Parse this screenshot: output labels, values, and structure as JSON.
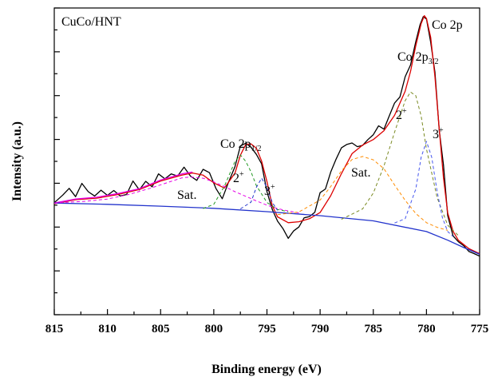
{
  "chart_data": {
    "type": "line",
    "sample_label": "CuCo/HNT",
    "region_label": "Co 2p",
    "xlabel": "Binding energy (eV)",
    "ylabel": "Intensity (a.u.)",
    "x_axis": {
      "range": [
        815,
        775
      ],
      "reversed": true,
      "ticks": [
        815,
        810,
        805,
        800,
        795,
        790,
        785,
        780,
        775
      ]
    },
    "y_axis": {
      "range": [
        0,
        100
      ],
      "tick_labels": "none"
    },
    "grid": false,
    "annotations": {
      "co2p32": {
        "base": "Co 2p",
        "sub": "3/2"
      },
      "co2p12": {
        "base": "Co 2p",
        "sub": "1/2"
      },
      "sat_left": "Sat.",
      "sat_right": "Sat.",
      "ox2_left": {
        "base": "2",
        "sup": "+"
      },
      "ox3_left": {
        "base": "3",
        "sup": "+"
      },
      "ox2_right": {
        "base": "2",
        "sup": "+"
      },
      "ox3_right": {
        "base": "3",
        "sup": "+"
      }
    },
    "series": [
      {
        "style": "raw",
        "color": "#000000",
        "dash": "",
        "x": [
          815,
          814.2,
          813.6,
          813.0,
          812.4,
          811.8,
          811.2,
          810.6,
          810.0,
          809.4,
          808.8,
          808.2,
          807.6,
          807.0,
          806.4,
          805.8,
          805.2,
          804.6,
          804.0,
          803.4,
          802.8,
          802.2,
          801.6,
          801.0,
          800.4,
          799.8,
          799.2,
          798.6,
          798.0,
          797.5,
          797.0,
          796.5,
          796.0,
          795.5,
          795.0,
          794.5,
          794.0,
          793.5,
          793.0,
          792.5,
          792.0,
          791.5,
          791.0,
          790.5,
          790.0,
          789.5,
          789.0,
          788.5,
          788.0,
          787.5,
          787.0,
          786.5,
          786.0,
          785.5,
          785.0,
          784.5,
          784.0,
          783.5,
          783.0,
          782.5,
          782.0,
          781.5,
          781.0,
          780.6,
          780.3,
          780.0,
          779.6,
          779.2,
          778.8,
          778.4,
          778.0,
          777.5,
          777.0,
          776.5,
          776.0,
          775.5,
          775.0
        ],
        "y": [
          36.5,
          39.0,
          41.2,
          38.5,
          42.8,
          40.1,
          38.7,
          40.6,
          38.9,
          40.5,
          38.7,
          39.2,
          43.6,
          40.7,
          43.5,
          41.7,
          45.9,
          44.3,
          45.9,
          45.2,
          48.1,
          45.2,
          43.8,
          47.4,
          46.3,
          41.2,
          37.8,
          43.3,
          48.3,
          55.0,
          55.9,
          54.6,
          52.3,
          49.2,
          40.1,
          34.3,
          30.5,
          28.1,
          24.9,
          27.3,
          28.6,
          31.6,
          32.0,
          33.4,
          39.8,
          41.0,
          46.5,
          50.7,
          54.4,
          55.5,
          56.0,
          54.8,
          55.2,
          57.1,
          58.7,
          61.6,
          60.5,
          64.8,
          69.0,
          71.0,
          77.6,
          81.4,
          89.0,
          94.6,
          97.2,
          96.4,
          88.8,
          79.1,
          60.1,
          48.8,
          32.3,
          25.7,
          23.8,
          22.5,
          20.6,
          19.9,
          19.1
        ]
      },
      {
        "style": "fit",
        "color": "#dd0000",
        "dash": "",
        "x": [
          815,
          813,
          811,
          809,
          807,
          805,
          803,
          802,
          801,
          800,
          799,
          798,
          797.5,
          797,
          796.5,
          796,
          795.5,
          795,
          794.5,
          794,
          793,
          792,
          791,
          790,
          789,
          788,
          787,
          786,
          785,
          784,
          783,
          782,
          781.5,
          781,
          780.5,
          780.2,
          780,
          779.6,
          779.2,
          778.8,
          778.4,
          778,
          777.5,
          777,
          776,
          775
        ],
        "y": [
          36.2,
          37.5,
          38.0,
          39.2,
          40.8,
          43.6,
          45.5,
          46.2,
          45.5,
          43.0,
          41.3,
          46.2,
          52.0,
          55.5,
          55.7,
          54.3,
          50.1,
          43.4,
          35.5,
          31.9,
          30.0,
          30.3,
          31.3,
          33.3,
          38.8,
          46.0,
          52.5,
          55.3,
          57.1,
          60.0,
          65.0,
          72.9,
          79.3,
          87.7,
          94.9,
          97.5,
          96.6,
          90.4,
          77.6,
          60.5,
          44.6,
          33.2,
          27.2,
          24.3,
          21.5,
          19.9
        ]
      },
      {
        "style": "envelope",
        "color": "#e600e6",
        "dash": "",
        "x": [
          815,
          813,
          811,
          809,
          807,
          805,
          803,
          802
        ],
        "y": [
          36.4,
          37.7,
          38.3,
          39.5,
          41.1,
          43.9,
          45.9,
          46.5
        ]
      },
      {
        "style": "background",
        "color": "#2233cc",
        "dash": "",
        "x": [
          815,
          810,
          805,
          800,
          795,
          790,
          785,
          780,
          778,
          776.5,
          775
        ],
        "y": [
          36.4,
          36.0,
          35.4,
          34.7,
          33.6,
          32.3,
          30.6,
          27.1,
          24.3,
          21.9,
          19.7
        ]
      },
      {
        "style": "sat-1/2",
        "color": "#e600e6",
        "dash": "4,3",
        "x": [
          815,
          812,
          810,
          808,
          806,
          804,
          803,
          802.2,
          801,
          800,
          799,
          798,
          797,
          796,
          795,
          794,
          793,
          792
        ],
        "y": [
          36.4,
          37.0,
          37.7,
          39.2,
          41.2,
          43.5,
          44.6,
          44.9,
          44.5,
          43.3,
          41.8,
          40.1,
          38.6,
          37.1,
          35.7,
          34.6,
          33.8,
          33.2
        ]
      },
      {
        "style": "Co2+ 1/2",
        "color": "#229922",
        "dash": "4,3",
        "x": [
          801,
          800,
          799,
          798,
          797.5,
          797,
          796.5,
          796,
          795,
          794,
          793
        ],
        "y": [
          34.6,
          36.0,
          41.9,
          50.0,
          52.1,
          50.0,
          46.6,
          42.1,
          36.6,
          34.3,
          33.6
        ]
      },
      {
        "style": "Co3+ 1/2",
        "color": "#2233cc",
        "dash": "4,3",
        "x": [
          797.5,
          796.5,
          796,
          795.5,
          795,
          794.5,
          794
        ],
        "y": [
          34.5,
          36.7,
          41.5,
          44.5,
          41.5,
          36.6,
          34.0
        ]
      },
      {
        "style": "sat-3/2",
        "color": "#ff8c00",
        "dash": "4,3",
        "x": [
          794,
          792,
          790,
          789,
          788,
          787,
          786,
          785,
          784,
          783,
          782,
          781,
          780,
          779,
          778
        ],
        "y": [
          32.6,
          33.5,
          37.4,
          41.8,
          46.9,
          50.6,
          51.6,
          50.5,
          47.6,
          42.3,
          37.3,
          33.0,
          30.0,
          28.5,
          27.5
        ]
      },
      {
        "style": "Co2+ 3/2",
        "color": "#7a8a22",
        "dash": "4,3",
        "x": [
          788,
          786,
          785,
          784,
          783,
          782,
          781.5,
          781,
          780.5,
          780,
          779,
          778,
          777
        ],
        "y": [
          31.1,
          34.5,
          39.7,
          48.5,
          59.5,
          69.8,
          72.6,
          71.4,
          64.8,
          54.0,
          38.2,
          29.2,
          25.8
        ]
      },
      {
        "style": "Co3+ 3/2",
        "color": "#4455ee",
        "dash": "4,3",
        "x": [
          783,
          782,
          781,
          780.5,
          780,
          779.5,
          779,
          778.5,
          778,
          777.5
        ],
        "y": [
          29.9,
          31.3,
          41.0,
          51.3,
          56.5,
          51.3,
          40.2,
          31.6,
          27.1,
          25.5
        ]
      }
    ]
  }
}
